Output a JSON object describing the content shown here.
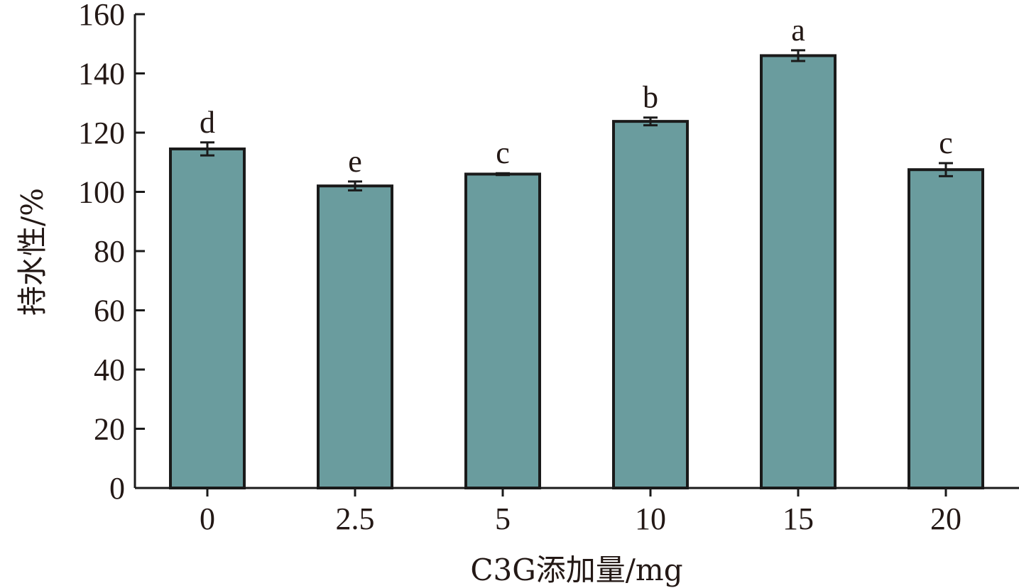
{
  "chart_data": {
    "type": "bar",
    "categories": [
      "0",
      "2.5",
      "5",
      "10",
      "15",
      "20"
    ],
    "values": [
      114.5,
      102,
      106,
      123.8,
      146,
      107.5
    ],
    "errors": [
      2.2,
      1.5,
      0.3,
      1.3,
      1.8,
      2.2
    ],
    "significance": [
      "d",
      "e",
      "c",
      "b",
      "a",
      "c"
    ],
    "title": "",
    "xlabel": "C3G添加量/mg",
    "ylabel": "持水性/%",
    "ylim": [
      0,
      160
    ],
    "yticks": [
      "0",
      "20",
      "40",
      "60",
      "80",
      "100",
      "120",
      "140",
      "160"
    ],
    "grid": false,
    "colors": {
      "bar_fill": "#6a9c9e",
      "bar_stroke": "#1a1a1a",
      "axis": "#1a1a1a",
      "text": "#231815"
    }
  }
}
